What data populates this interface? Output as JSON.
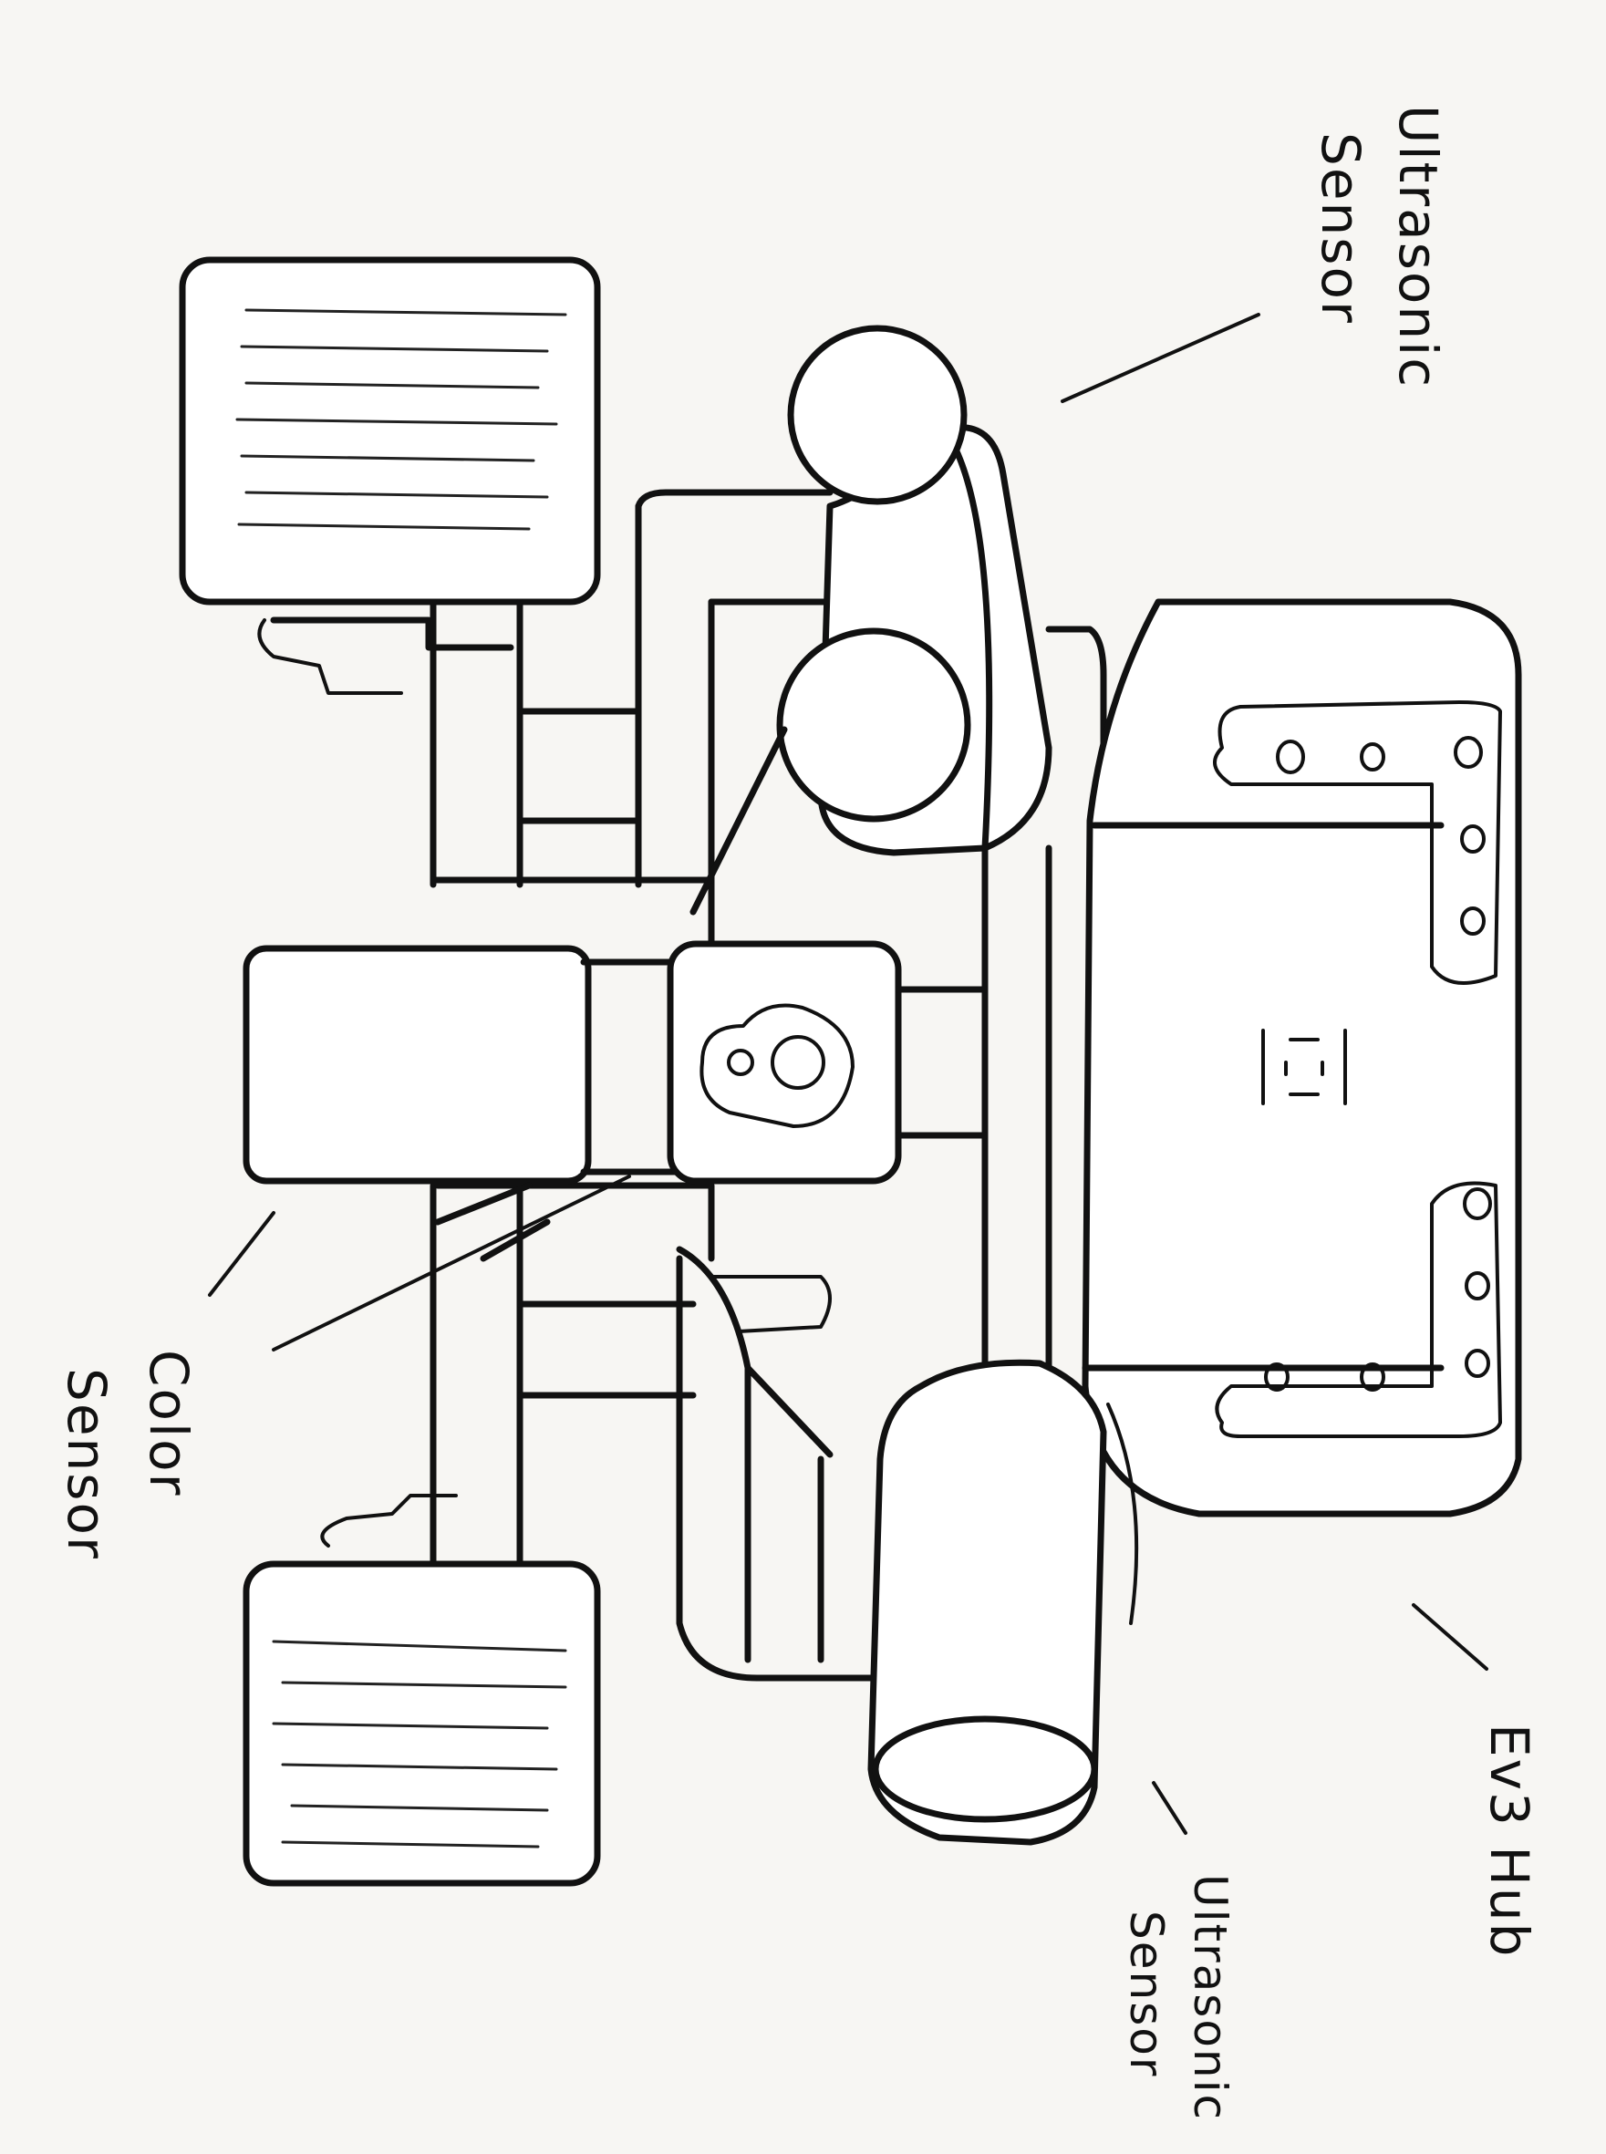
{
  "drawing": {
    "labels": {
      "ultrasonic_top_line1": "Ultrasonic",
      "ultrasonic_top_line2": "Sensor",
      "color_line1": "Color",
      "color_line2": "Sensor",
      "ev3_hub": "Ev3 Hub",
      "ultrasonic_bottom_line1": "Ultrasonic",
      "ultrasonic_bottom_line2": "Sensor"
    },
    "colors": {
      "ink": "#111111",
      "paper": "#f7f6f3"
    }
  }
}
